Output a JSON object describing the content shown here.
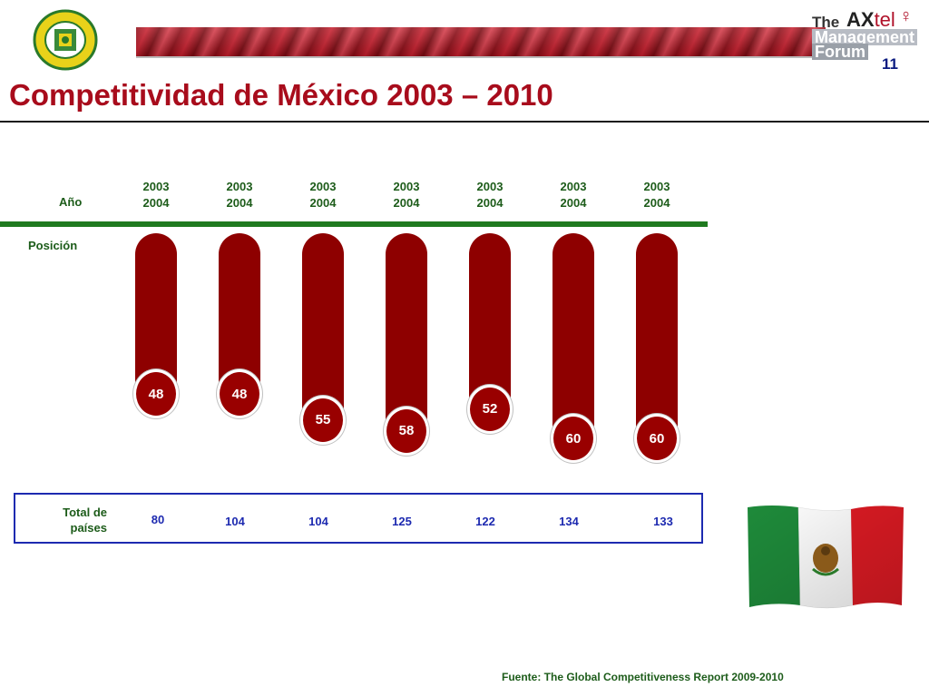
{
  "header": {
    "slide_number": "11",
    "title": "Competitividad de México 2003 – 2010",
    "brand": {
      "the": "The",
      "ax": "AX",
      "tel": "tel",
      "line1": "Management",
      "line2": "Forum"
    }
  },
  "chart_data": {
    "type": "bar",
    "row_labels": {
      "year": "Año",
      "position": "Posición",
      "total_line1": "Total de",
      "total_line2": "países"
    },
    "categories": [
      {
        "line1": "2003",
        "line2": "2004"
      },
      {
        "line1": "2003",
        "line2": "2004"
      },
      {
        "line1": "2003",
        "line2": "2004"
      },
      {
        "line1": "2003",
        "line2": "2004"
      },
      {
        "line1": "2003",
        "line2": "2004"
      },
      {
        "line1": "2003",
        "line2": "2004"
      },
      {
        "line1": "2003",
        "line2": "2004"
      }
    ],
    "values": [
      48,
      48,
      55,
      58,
      52,
      60,
      60
    ],
    "totals": [
      80,
      104,
      104,
      125,
      122,
      134,
      133
    ],
    "colors": {
      "bar": "#8e0000",
      "rule": "#1f7a1f",
      "box": "#1d2ab0"
    }
  },
  "footer": {
    "source": "Fuente: The Global Competitiveness Report 2009-2010"
  }
}
